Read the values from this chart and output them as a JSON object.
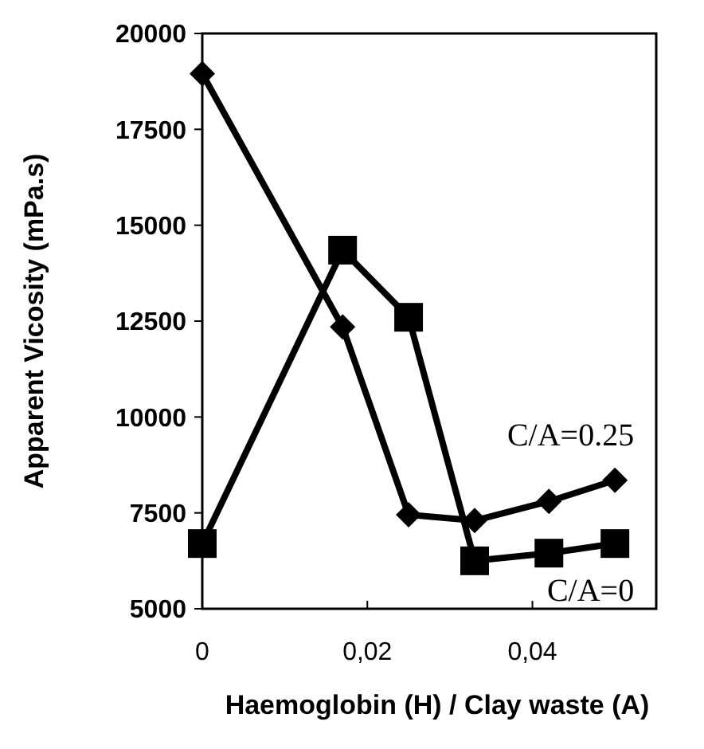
{
  "chart_data": {
    "type": "line",
    "xlabel": "Haemoglobin (H) / Clay waste (A)",
    "ylabel": "Apparent Vicosity (mPa.s)",
    "x": [
      0,
      0.017,
      0.025,
      0.033,
      0.042,
      0.05
    ],
    "series": [
      {
        "name": "C/A=0.25",
        "color": "#000000",
        "marker": "diamond",
        "values": [
          18950,
          12350,
          7450,
          7300,
          7800,
          8350
        ]
      },
      {
        "name": "C/A=0",
        "color": "#000000",
        "marker": "square",
        "values": [
          6700,
          14350,
          12600,
          6250,
          6450,
          6700
        ]
      }
    ],
    "xlim": [
      0,
      0.055
    ],
    "xticks": [
      0,
      {
        "value": 0.02,
        "label": "0,02"
      },
      {
        "value": 0.04,
        "label": "0,04"
      }
    ],
    "ylim": [
      5000,
      20000
    ],
    "yticks": [
      5000,
      7500,
      10000,
      12500,
      15000,
      17500,
      20000
    ],
    "grid": false,
    "line_style": "solid"
  }
}
